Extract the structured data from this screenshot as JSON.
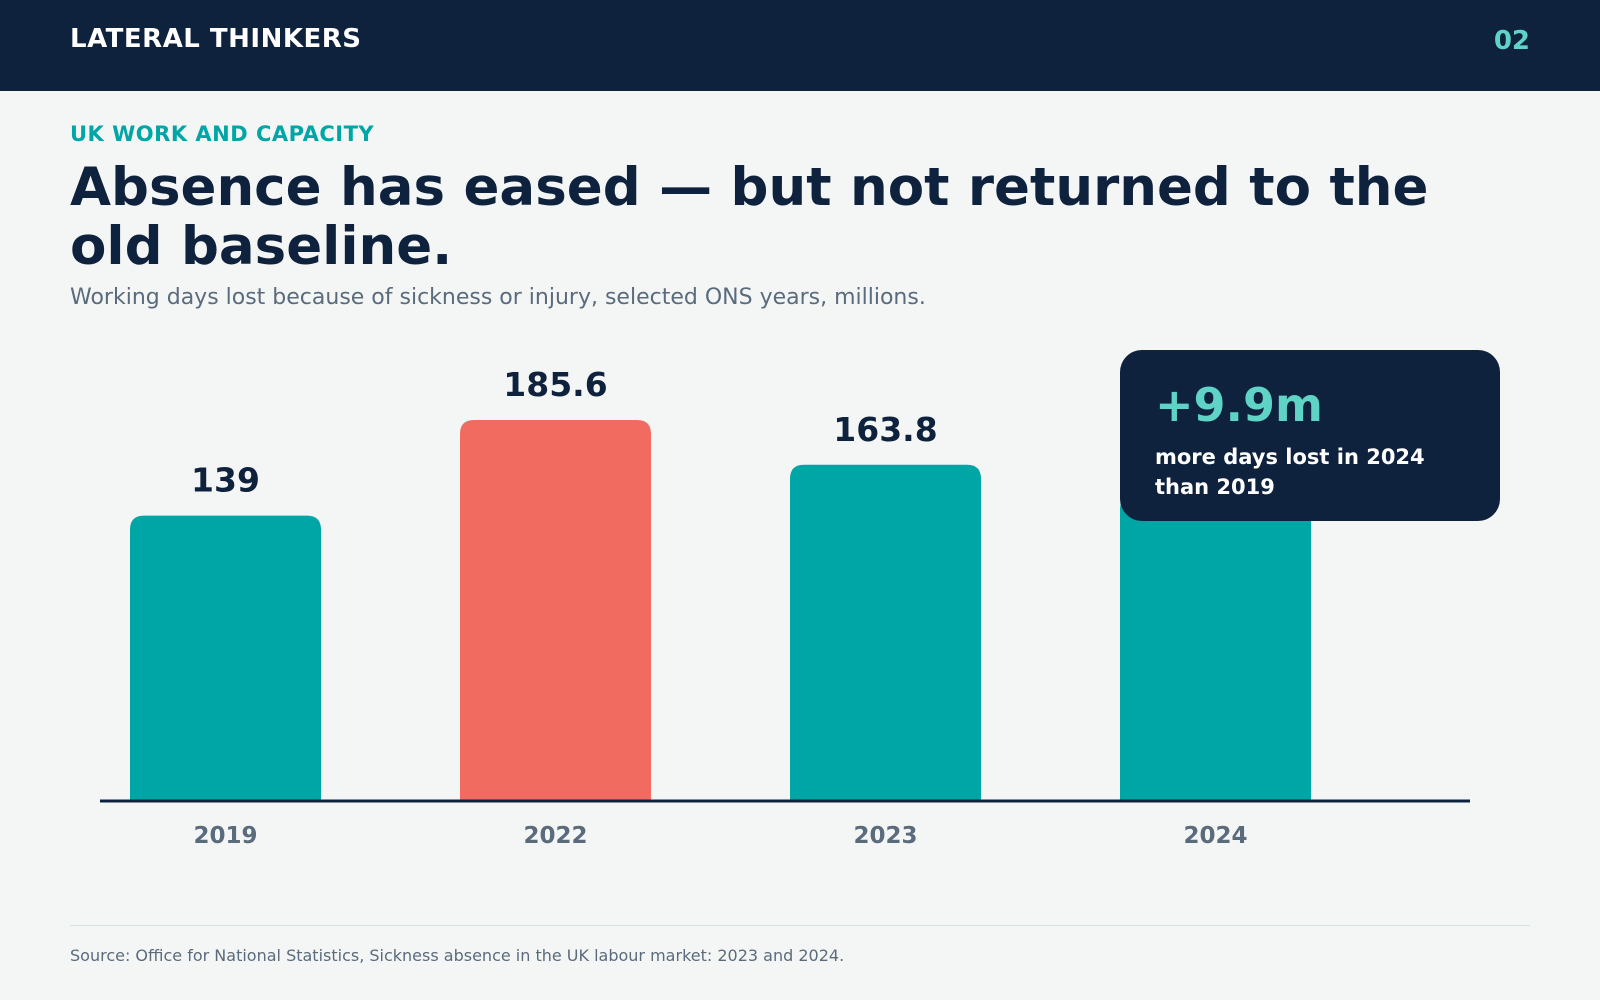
{
  "header": {
    "brand": "LATERAL THINKERS",
    "page_number": "02"
  },
  "eyebrow": "UK WORK AND CAPACITY",
  "title": "Absence has eased — but not returned to the old baseline.",
  "subtitle": "Working days lost because of sickness or injury, selected ONS years, millions.",
  "callout": {
    "value": "+9.9m",
    "text": "more days lost in 2024 than 2019"
  },
  "source": "Source: Office for National Statistics, Sickness absence in the UK labour market: 2023 and 2024.",
  "colors": {
    "navy": "#0f223d",
    "teal": "#00a5a5",
    "coral": "#f26b60",
    "mint": "#5fd3c6",
    "slate": "#5a6b7c"
  },
  "chart_data": {
    "type": "bar",
    "categories": [
      "2019",
      "2022",
      "2023",
      "2024"
    ],
    "values": [
      139,
      185.6,
      163.8,
      148.9
    ],
    "data_labels": [
      "139",
      "185.6",
      "163.8",
      ""
    ],
    "highlight": [
      "teal",
      "coral",
      "teal",
      "teal"
    ],
    "title": "",
    "xlabel": "",
    "ylabel": "",
    "ylim": [
      0,
      185.6
    ],
    "grid": false,
    "legend": "none"
  }
}
